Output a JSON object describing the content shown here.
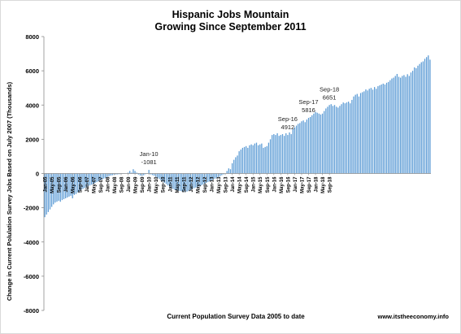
{
  "chart_data": {
    "type": "bar",
    "title_lines": [
      "Hispanic Jobs Mountain",
      "Growing Since September 2011"
    ],
    "ylabel": "Change in Current Polulation Survey Jobs Based on July 2007  (Thousands)",
    "xlabel": "Current Population Survey Data 2005 to date",
    "source": "www.itstheeconomy.info",
    "yticks": [
      "8000",
      "6000",
      "4000",
      "2000",
      "0",
      "-2000",
      "-4000",
      "-6000",
      "-8000"
    ],
    "ylim": [
      -8000,
      8000
    ],
    "start_month": "Jan-05",
    "xtick_labels": [
      "Jan-05",
      "May-05",
      "Sep-05",
      "Jan-06",
      "May-06",
      "Sep-06",
      "Jan-07",
      "May-07",
      "Sep-07",
      "Jan-08",
      "May-08",
      "Sep-08",
      "Jan-09",
      "May-09",
      "Sep-09",
      "Jan-10",
      "May-10",
      "Sep-10",
      "Jan-11",
      "May-11",
      "Sep-11",
      "Jan-12",
      "May-12",
      "Sep-12",
      "Jan-13",
      "May-13",
      "Sep-13",
      "Jan-14",
      "May-14",
      "Sep-14",
      "Jan-15",
      "May-15",
      "Sep-15",
      "Jan-16",
      "May-16",
      "Sep-16",
      "Jan-17",
      "May-17",
      "Sep-17",
      "Jan-18",
      "May-18",
      "Sep-18"
    ],
    "values": [
      -2550,
      -2400,
      -2250,
      -2100,
      -1950,
      -1800,
      -1700,
      -1650,
      -1600,
      -1650,
      -1550,
      -1500,
      -1450,
      -1400,
      -1350,
      -1300,
      -1450,
      -1250,
      -1200,
      -1100,
      -1050,
      -950,
      -900,
      -850,
      -800,
      -750,
      -700,
      -650,
      -600,
      -550,
      -500,
      -450,
      -400,
      -350,
      -300,
      -250,
      -200,
      -150,
      -120,
      -100,
      -80,
      -60,
      -50,
      -40,
      -30,
      -20,
      -10,
      0,
      50,
      150,
      50,
      250,
      150,
      50,
      -60,
      -120,
      -140,
      -100,
      -40,
      -20,
      210,
      -50,
      -90,
      -130,
      -180,
      -250,
      -320,
      -400,
      -470,
      -540,
      -620,
      -700,
      -780,
      -850,
      -900,
      -950,
      -980,
      -1000,
      -1020,
      -1040,
      -1060,
      -1081,
      -1050,
      -1000,
      -950,
      -900,
      -860,
      -820,
      -780,
      -740,
      -700,
      -650,
      -600,
      -550,
      -500,
      -450,
      -400,
      -350,
      -300,
      -250,
      -200,
      -150,
      -100,
      -50,
      0,
      150,
      300,
      250,
      600,
      800,
      950,
      1050,
      1300,
      1400,
      1500,
      1550,
      1600,
      1500,
      1650,
      1700,
      1650,
      1750,
      1800,
      1650,
      1700,
      1750,
      1500,
      1550,
      1600,
      1800,
      2000,
      2250,
      2300,
      2250,
      2350,
      2200,
      2250,
      2300,
      2200,
      2350,
      2250,
      2400,
      2300,
      2600,
      2700,
      2800,
      2900,
      2950,
      3050,
      3100,
      3000,
      3150,
      3250,
      3300,
      3400,
      3500,
      3600,
      3550,
      3500,
      3450,
      3500,
      3650,
      3800,
      3900,
      4000,
      4050,
      3950,
      4000,
      3900,
      3850,
      3950,
      4050,
      4150,
      4100,
      4150,
      4200,
      4100,
      4300,
      4500,
      4600,
      4650,
      4500,
      4700,
      4750,
      4800,
      4912,
      4850,
      4950,
      5000,
      4900,
      5050,
      4950,
      5100,
      5150,
      5200,
      5250,
      5200,
      5300,
      5350,
      5450,
      5550,
      5600,
      5700,
      5816,
      5650,
      5600,
      5700,
      5750,
      5650,
      5800,
      5700,
      5900,
      6000,
      6200,
      6150,
      6300,
      6400,
      6500,
      6550,
      6700,
      6800,
      6900,
      6651
    ],
    "annotations": [
      {
        "label": "Jan-10",
        "value": "-1081"
      },
      {
        "label": "Sep-16",
        "value": "4912"
      },
      {
        "label": "Sep-17",
        "value": "5816"
      },
      {
        "label": "Sep-18",
        "value": "6651"
      }
    ],
    "bar_color": "#5b9bd5",
    "grid": false,
    "legend": "none"
  }
}
